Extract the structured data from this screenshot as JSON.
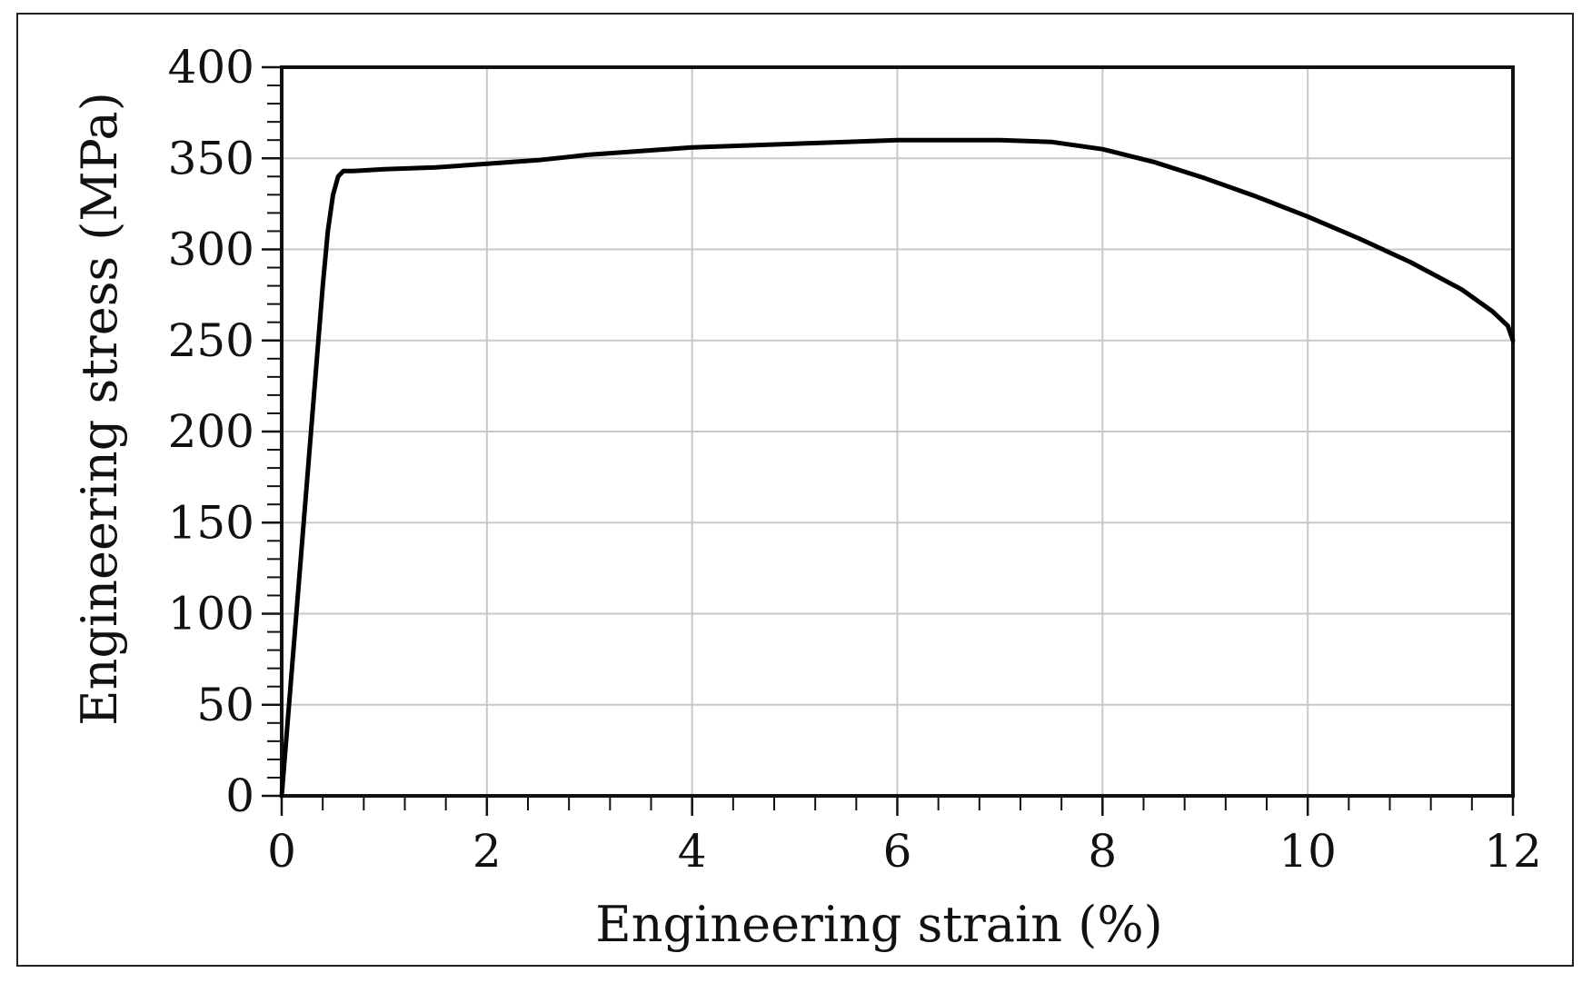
{
  "chart_data": {
    "type": "line",
    "title": "",
    "xlabel": "Engineering strain (%)",
    "ylabel": "Engineering stress (MPa)",
    "xlim": [
      0,
      12
    ],
    "ylim": [
      0,
      400
    ],
    "x_ticks": [
      0,
      2,
      4,
      6,
      8,
      10,
      12
    ],
    "y_ticks": [
      0,
      50,
      100,
      150,
      200,
      250,
      300,
      350,
      400
    ],
    "x_tick_labels": [
      "0",
      "2",
      "4",
      "6",
      "8",
      "10",
      "12"
    ],
    "y_tick_labels": [
      "0",
      "50",
      "100",
      "150",
      "200",
      "250",
      "300",
      "350",
      "400"
    ],
    "grid": true,
    "legend": "none",
    "line_color": "#000000",
    "series": [
      {
        "x": [
          0,
          0.1,
          0.2,
          0.3,
          0.4,
          0.45,
          0.5,
          0.55,
          0.6,
          0.7,
          1.0,
          1.5,
          2.0,
          2.5,
          3.0,
          3.5,
          4.0,
          5.0,
          6.0,
          6.5,
          7.0,
          7.5,
          8.0,
          8.5,
          9.0,
          9.5,
          10.0,
          10.5,
          11.0,
          11.5,
          11.8,
          11.95,
          12.0
        ],
        "y": [
          0,
          70,
          140,
          210,
          280,
          310,
          330,
          340,
          343,
          343,
          344,
          345,
          347,
          349,
          352,
          354,
          356,
          358,
          360,
          360,
          360,
          359,
          355,
          348,
          339,
          329,
          318,
          306,
          293,
          278,
          266,
          258,
          250
        ]
      }
    ]
  }
}
